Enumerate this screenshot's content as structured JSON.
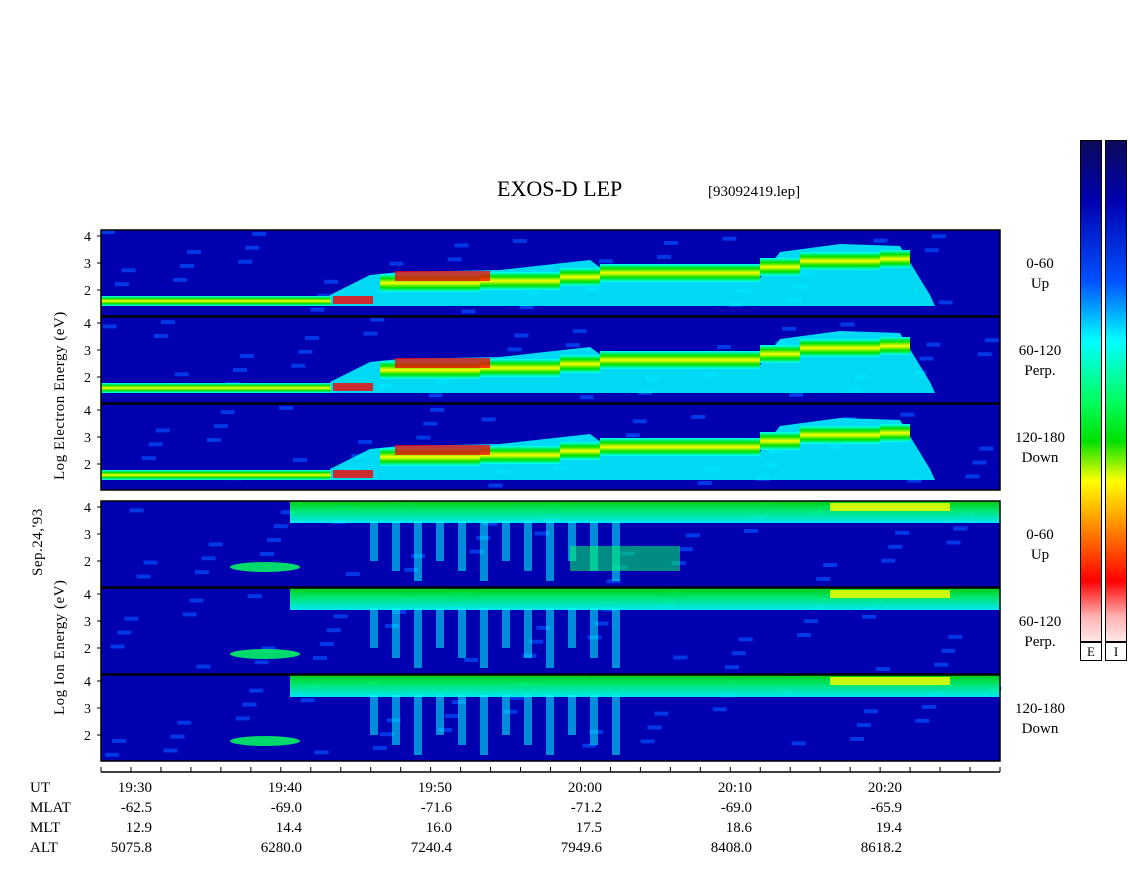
{
  "header": {
    "title": "EXOS-D LEP",
    "subtitle": "[93092419.lep]"
  },
  "left_labels": {
    "date": "Sep.24,'93",
    "electron_axis": "Log  Electron  Energy (eV)",
    "ion_axis": "Log  Ion  Energy (eV)"
  },
  "colorbar": {
    "electron_label": "E",
    "ion_label": "I"
  },
  "orbit_table": {
    "row_labels": [
      "UT",
      "MLAT",
      "MLT",
      "ALT"
    ],
    "columns": [
      {
        "ut": "19:30",
        "mlat": "-62.5",
        "mlt": "12.9",
        "alt": "5075.8"
      },
      {
        "ut": "19:40",
        "mlat": "-69.0",
        "mlt": "14.4",
        "alt": "6280.0"
      },
      {
        "ut": "19:50",
        "mlat": "-71.6",
        "mlt": "16.0",
        "alt": "7240.4"
      },
      {
        "ut": "20:00",
        "mlat": "-71.2",
        "mlt": "17.5",
        "alt": "7949.6"
      },
      {
        "ut": "20:10",
        "mlat": "-69.0",
        "mlt": "18.6",
        "alt": "8408.0"
      },
      {
        "ut": "20:20",
        "mlat": "-65.9",
        "mlt": "19.4",
        "alt": "8618.2"
      }
    ]
  },
  "chart_data": {
    "type": "heatmap",
    "title": "EXOS-D LEP",
    "subtitle": "[93092419.lep]",
    "x_axis": {
      "label": "UT",
      "range": [
        "19:27",
        "20:27"
      ],
      "ticks": [
        "19:30",
        "19:40",
        "19:50",
        "20:00",
        "20:10",
        "20:20"
      ],
      "minor_step_minutes": 2
    },
    "y_ticks": [
      "4",
      "3",
      "2"
    ],
    "panels": [
      {
        "species": "electron",
        "pitch": "0-60",
        "direction": "Up"
      },
      {
        "species": "electron",
        "pitch": "60-120",
        "direction": "Perp."
      },
      {
        "species": "electron",
        "pitch": "120-180",
        "direction": "Down"
      },
      {
        "species": "ion",
        "pitch": "0-60",
        "direction": "Up"
      },
      {
        "species": "ion",
        "pitch": "60-120",
        "direction": "Perp."
      },
      {
        "species": "ion",
        "pitch": "120-180",
        "direction": "Down"
      }
    ],
    "colors": [
      "#0a0a5a",
      "#0000b0",
      "#0050ff",
      "#00ffff",
      "#00ff60",
      "#00e000",
      "#ffff00",
      "#ff8000",
      "#ff0000",
      "#ffe8e8"
    ]
  }
}
